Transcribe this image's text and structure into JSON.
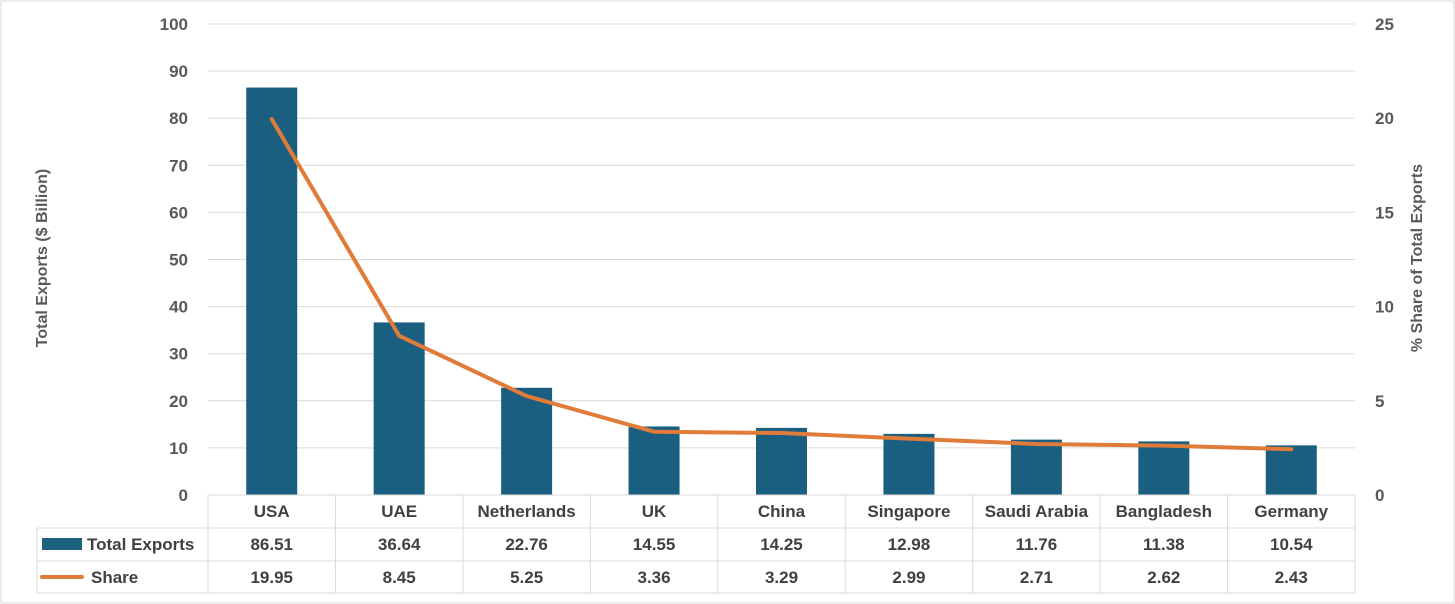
{
  "chart_data": {
    "type": "bar",
    "categories": [
      "USA",
      "UAE",
      "Netherlands",
      "UK",
      "China",
      "Singapore",
      "Saudi Arabia",
      "Bangladesh",
      "Germany"
    ],
    "series": [
      {
        "name": "Total Exports",
        "kind": "bar",
        "axis": "left",
        "color": "#1a5e80",
        "values": [
          86.51,
          36.64,
          22.76,
          14.55,
          14.25,
          12.98,
          11.76,
          11.38,
          10.54
        ]
      },
      {
        "name": "Share",
        "kind": "line",
        "axis": "right",
        "color": "#e07b39",
        "values": [
          19.95,
          8.45,
          5.25,
          3.36,
          3.29,
          2.99,
          2.71,
          2.62,
          2.43
        ]
      }
    ],
    "value_labels": {
      "Total Exports": [
        "86.51",
        "36.64",
        "22.76",
        "14.55",
        "14.25",
        "12.98",
        "11.76",
        "11.38",
        "10.54"
      ],
      "Share": [
        "19.95",
        "8.45",
        "5.25",
        "3.36",
        "3.29",
        "2.99",
        "2.71",
        "2.62",
        "2.43"
      ]
    },
    "ylabel": "Total Exports ($ Billion)",
    "y2label": "% Share of Total Exports",
    "ylim": [
      0,
      100
    ],
    "y2lim": [
      0,
      25
    ],
    "yticks": [
      "0",
      "10",
      "20",
      "30",
      "40",
      "50",
      "60",
      "70",
      "80",
      "90",
      "100"
    ],
    "y2ticks": [
      "0",
      "5",
      "10",
      "15",
      "20",
      "25"
    ],
    "grid": true,
    "legend": "data-table",
    "gridline_color": "#d9d9d9"
  }
}
